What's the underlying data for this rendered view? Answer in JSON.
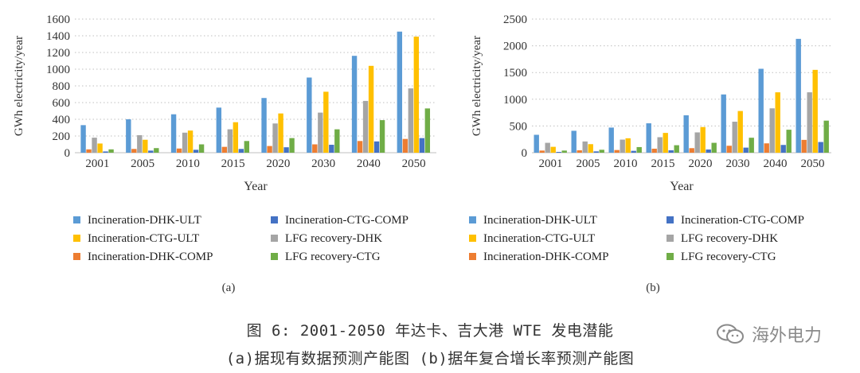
{
  "caption": {
    "line1": "图 6: 2001-2050 年达卡、吉大港 WTE 发电潜能",
    "line2": "(a)据现有数据预测产能图  (b)据年复合增长率预测产能图"
  },
  "watermark": {
    "text": "海外电力",
    "icon": "wechat-bubble-icon"
  },
  "chart_data": [
    {
      "type": "bar",
      "panel_label": "(a)",
      "ylabel": "GWh electricity/year",
      "xlabel": "Year",
      "ylim": [
        0,
        1600
      ],
      "yticks": [
        0,
        200,
        400,
        600,
        800,
        1000,
        1200,
        1400,
        1600
      ],
      "grid": "horizontal dotted",
      "categories": [
        "2001",
        "2005",
        "2010",
        "2015",
        "2020",
        "2030",
        "2040",
        "2050"
      ],
      "series": [
        {
          "name": "Incineration-DHK-ULT",
          "color": "#5b9bd5",
          "values": [
            330,
            400,
            460,
            540,
            655,
            900,
            1160,
            1450
          ]
        },
        {
          "name": "Incineration-DHK-COMP",
          "color": "#ed7d31",
          "values": [
            40,
            45,
            50,
            70,
            80,
            100,
            140,
            165
          ]
        },
        {
          "name": "LFG recovery-DHK",
          "color": "#a5a5a5",
          "values": [
            180,
            210,
            240,
            280,
            350,
            480,
            620,
            770
          ]
        },
        {
          "name": "Incineration-CTG-ULT",
          "color": "#ffc000",
          "values": [
            110,
            155,
            265,
            365,
            470,
            730,
            1040,
            1390
          ]
        },
        {
          "name": "Incineration-CTG-COMP",
          "color": "#4472c4",
          "values": [
            15,
            25,
            35,
            45,
            65,
            95,
            135,
            175
          ]
        },
        {
          "name": "LFG recovery-CTG",
          "color": "#70ad47",
          "values": [
            40,
            55,
            100,
            140,
            175,
            280,
            390,
            530
          ]
        }
      ],
      "legend": [
        [
          "Incineration-DHK-ULT",
          "Incineration-CTG-COMP"
        ],
        [
          "Incineration-CTG-ULT",
          "LFG recovery-DHK"
        ],
        [
          "Incineration-DHK-COMP",
          "LFG recovery-CTG"
        ]
      ]
    },
    {
      "type": "bar",
      "panel_label": "(b)",
      "ylabel": "GWh electricity/year",
      "xlabel": "Year",
      "ylim": [
        0,
        2500
      ],
      "yticks": [
        0,
        500,
        1000,
        1500,
        2000,
        2500
      ],
      "grid": "horizontal dotted",
      "categories": [
        "2001",
        "2005",
        "2010",
        "2015",
        "2020",
        "2030",
        "2040",
        "2050"
      ],
      "series": [
        {
          "name": "Incineration-DHK-ULT",
          "color": "#5b9bd5",
          "values": [
            335,
            410,
            470,
            550,
            700,
            1090,
            1570,
            2130
          ]
        },
        {
          "name": "Incineration-DHK-COMP",
          "color": "#ed7d31",
          "values": [
            40,
            45,
            50,
            75,
            85,
            130,
            175,
            240
          ]
        },
        {
          "name": "LFG recovery-DHK",
          "color": "#a5a5a5",
          "values": [
            185,
            210,
            245,
            290,
            380,
            580,
            830,
            1130
          ]
        },
        {
          "name": "Incineration-CTG-ULT",
          "color": "#ffc000",
          "values": [
            110,
            160,
            270,
            370,
            480,
            780,
            1130,
            1550
          ]
        },
        {
          "name": "Incineration-CTG-COMP",
          "color": "#4472c4",
          "values": [
            15,
            25,
            35,
            45,
            60,
            95,
            145,
            200
          ]
        },
        {
          "name": "LFG recovery-CTG",
          "color": "#70ad47",
          "values": [
            40,
            55,
            105,
            140,
            185,
            280,
            430,
            600
          ]
        }
      ],
      "legend": [
        [
          "Incineration-DHK-ULT",
          "Incineration-CTG-COMP"
        ],
        [
          "Incineration-CTG-ULT",
          "LFG recovery-DHK"
        ],
        [
          "Incineration-DHK-COMP",
          "LFG recovery-CTG"
        ]
      ]
    }
  ]
}
